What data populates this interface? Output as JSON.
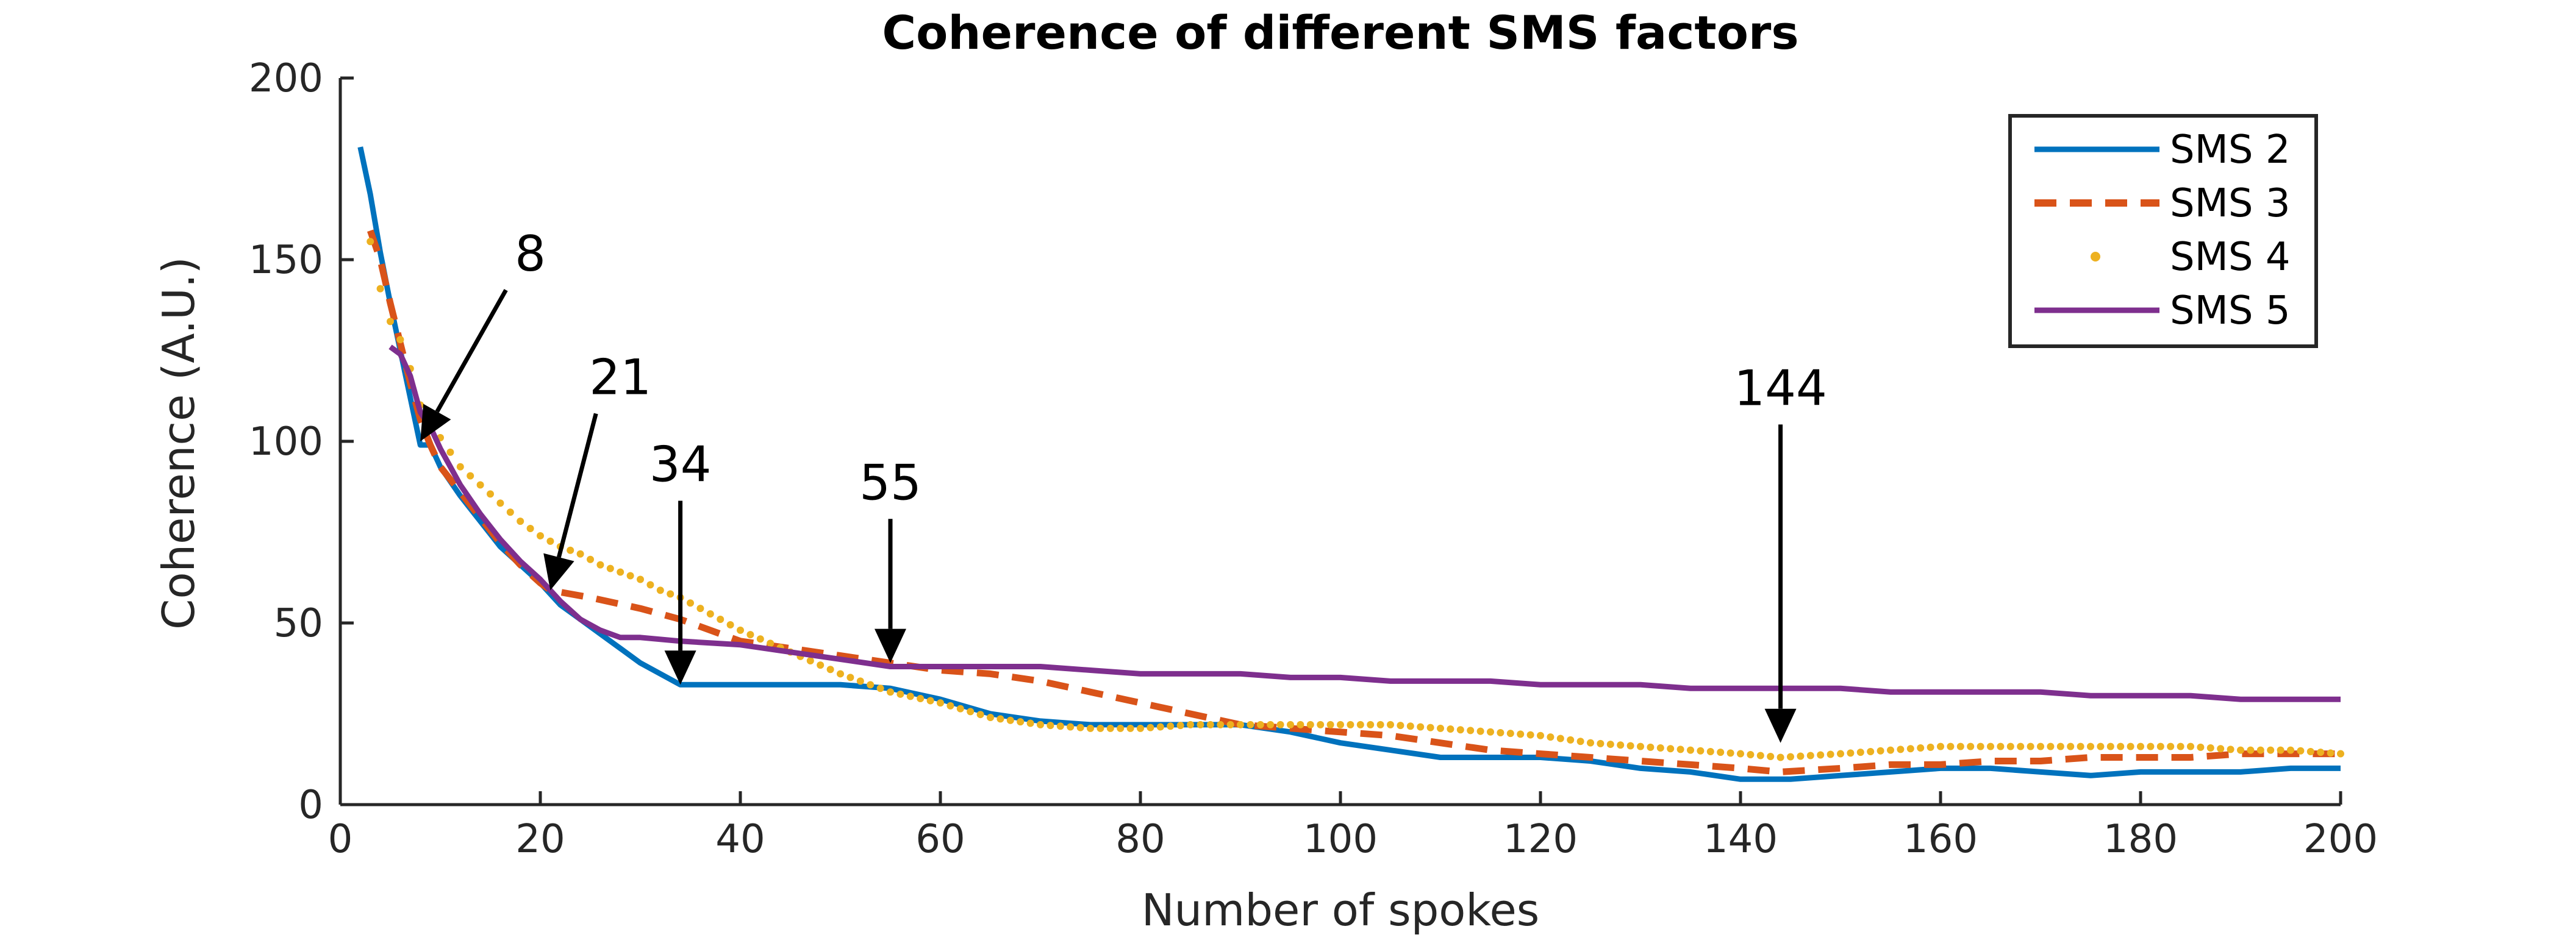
{
  "chart_data": {
    "type": "line",
    "title": "Coherence of different SMS factors",
    "xlabel": "Number of spokes",
    "ylabel": "Coherence (A.U.)",
    "xlim": [
      0,
      200
    ],
    "ylim": [
      0,
      200
    ],
    "xticks": [
      0,
      20,
      40,
      60,
      80,
      100,
      120,
      140,
      160,
      180,
      200
    ],
    "yticks": [
      0,
      50,
      100,
      150,
      200
    ],
    "grid": false,
    "legend_position": "top-right",
    "series": [
      {
        "name": "SMS 2",
        "color": "#0072BD",
        "style": "solid",
        "points": [
          [
            2,
            181
          ],
          [
            3,
            168
          ],
          [
            4,
            152
          ],
          [
            5,
            138
          ],
          [
            6,
            125
          ],
          [
            7,
            112
          ],
          [
            8,
            99
          ],
          [
            9,
            99
          ],
          [
            10,
            93
          ],
          [
            12,
            85
          ],
          [
            14,
            78
          ],
          [
            16,
            71
          ],
          [
            18,
            66
          ],
          [
            20,
            61
          ],
          [
            22,
            55
          ],
          [
            24,
            51
          ],
          [
            26,
            47
          ],
          [
            28,
            43
          ],
          [
            30,
            39
          ],
          [
            32,
            36
          ],
          [
            34,
            33
          ],
          [
            36,
            33
          ],
          [
            40,
            33
          ],
          [
            45,
            33
          ],
          [
            50,
            33
          ],
          [
            55,
            32
          ],
          [
            60,
            29
          ],
          [
            65,
            25
          ],
          [
            70,
            23
          ],
          [
            75,
            22
          ],
          [
            80,
            22
          ],
          [
            85,
            22
          ],
          [
            90,
            22
          ],
          [
            95,
            20
          ],
          [
            100,
            17
          ],
          [
            105,
            15
          ],
          [
            110,
            13
          ],
          [
            115,
            13
          ],
          [
            120,
            13
          ],
          [
            125,
            12
          ],
          [
            130,
            10
          ],
          [
            135,
            9
          ],
          [
            140,
            7
          ],
          [
            145,
            7
          ],
          [
            150,
            8
          ],
          [
            155,
            9
          ],
          [
            160,
            10
          ],
          [
            165,
            10
          ],
          [
            170,
            9
          ],
          [
            175,
            8
          ],
          [
            180,
            9
          ],
          [
            185,
            9
          ],
          [
            190,
            9
          ],
          [
            195,
            10
          ],
          [
            200,
            10
          ]
        ]
      },
      {
        "name": "SMS 3",
        "color": "#D95319",
        "style": "dashed",
        "points": [
          [
            3,
            158
          ],
          [
            4,
            150
          ],
          [
            5,
            138
          ],
          [
            6,
            127
          ],
          [
            7,
            116
          ],
          [
            8,
            106
          ],
          [
            9,
            99
          ],
          [
            10,
            93
          ],
          [
            12,
            86
          ],
          [
            14,
            79
          ],
          [
            16,
            72
          ],
          [
            18,
            66
          ],
          [
            20,
            61
          ],
          [
            21,
            59
          ],
          [
            25,
            57
          ],
          [
            30,
            54
          ],
          [
            34,
            51
          ],
          [
            40,
            45
          ],
          [
            45,
            43
          ],
          [
            50,
            41
          ],
          [
            55,
            39
          ],
          [
            60,
            37
          ],
          [
            65,
            36
          ],
          [
            70,
            34
          ],
          [
            75,
            31
          ],
          [
            80,
            28
          ],
          [
            85,
            25
          ],
          [
            90,
            22
          ],
          [
            95,
            21
          ],
          [
            100,
            20
          ],
          [
            105,
            19
          ],
          [
            110,
            17
          ],
          [
            115,
            15
          ],
          [
            120,
            14
          ],
          [
            125,
            13
          ],
          [
            130,
            12
          ],
          [
            135,
            11
          ],
          [
            140,
            10
          ],
          [
            144,
            9
          ],
          [
            150,
            10
          ],
          [
            155,
            11
          ],
          [
            160,
            11
          ],
          [
            165,
            12
          ],
          [
            170,
            12
          ],
          [
            175,
            13
          ],
          [
            180,
            13
          ],
          [
            185,
            13
          ],
          [
            190,
            14
          ],
          [
            195,
            14
          ],
          [
            200,
            14
          ]
        ]
      },
      {
        "name": "SMS 4",
        "color": "#EDB120",
        "style": "dotted",
        "points": [
          [
            3,
            155
          ],
          [
            4,
            142
          ],
          [
            5,
            133
          ],
          [
            6,
            128
          ],
          [
            7,
            120
          ],
          [
            8,
            110
          ],
          [
            9,
            105
          ],
          [
            10,
            101
          ],
          [
            12,
            93
          ],
          [
            14,
            88
          ],
          [
            16,
            83
          ],
          [
            18,
            78
          ],
          [
            20,
            74
          ],
          [
            22,
            71
          ],
          [
            24,
            69
          ],
          [
            26,
            66
          ],
          [
            28,
            64
          ],
          [
            30,
            62
          ],
          [
            32,
            59
          ],
          [
            34,
            57
          ],
          [
            36,
            54
          ],
          [
            40,
            48
          ],
          [
            45,
            42
          ],
          [
            50,
            36
          ],
          [
            55,
            31
          ],
          [
            60,
            28
          ],
          [
            65,
            24
          ],
          [
            70,
            22
          ],
          [
            75,
            21
          ],
          [
            80,
            21
          ],
          [
            85,
            22
          ],
          [
            90,
            22
          ],
          [
            95,
            22
          ],
          [
            100,
            22
          ],
          [
            105,
            22
          ],
          [
            110,
            21
          ],
          [
            115,
            20
          ],
          [
            120,
            19
          ],
          [
            125,
            17
          ],
          [
            130,
            16
          ],
          [
            135,
            15
          ],
          [
            140,
            14
          ],
          [
            144,
            13
          ],
          [
            150,
            14
          ],
          [
            155,
            15
          ],
          [
            160,
            16
          ],
          [
            165,
            16
          ],
          [
            170,
            16
          ],
          [
            175,
            16
          ],
          [
            180,
            16
          ],
          [
            185,
            16
          ],
          [
            190,
            15
          ],
          [
            195,
            15
          ],
          [
            200,
            14
          ]
        ]
      },
      {
        "name": "SMS 5",
        "color": "#7E2F8E",
        "style": "solid",
        "points": [
          [
            5,
            126
          ],
          [
            6,
            124
          ],
          [
            7,
            118
          ],
          [
            8,
            108
          ],
          [
            9,
            104
          ],
          [
            10,
            98
          ],
          [
            12,
            88
          ],
          [
            14,
            80
          ],
          [
            16,
            73
          ],
          [
            18,
            67
          ],
          [
            20,
            62
          ],
          [
            22,
            56
          ],
          [
            24,
            51
          ],
          [
            26,
            48
          ],
          [
            28,
            46
          ],
          [
            30,
            46
          ],
          [
            34,
            45
          ],
          [
            40,
            44
          ],
          [
            45,
            42
          ],
          [
            50,
            40
          ],
          [
            55,
            38
          ],
          [
            60,
            38
          ],
          [
            65,
            38
          ],
          [
            70,
            38
          ],
          [
            75,
            37
          ],
          [
            80,
            36
          ],
          [
            85,
            36
          ],
          [
            90,
            36
          ],
          [
            95,
            35
          ],
          [
            100,
            35
          ],
          [
            105,
            34
          ],
          [
            110,
            34
          ],
          [
            115,
            34
          ],
          [
            120,
            33
          ],
          [
            125,
            33
          ],
          [
            130,
            33
          ],
          [
            135,
            32
          ],
          [
            140,
            32
          ],
          [
            145,
            32
          ],
          [
            150,
            32
          ],
          [
            155,
            31
          ],
          [
            160,
            31
          ],
          [
            165,
            31
          ],
          [
            170,
            31
          ],
          [
            175,
            30
          ],
          [
            180,
            30
          ],
          [
            185,
            30
          ],
          [
            190,
            29
          ],
          [
            195,
            29
          ],
          [
            200,
            29
          ]
        ]
      }
    ],
    "annotations": [
      {
        "label": "8",
        "target": [
          8,
          100
        ],
        "text_at": [
          19,
          145
        ]
      },
      {
        "label": "21",
        "target": [
          21,
          59
        ],
        "text_at": [
          28,
          111
        ]
      },
      {
        "label": "34",
        "target": [
          34,
          33
        ],
        "text_at": [
          34,
          87
        ]
      },
      {
        "label": "55",
        "target": [
          55,
          39
        ],
        "text_at": [
          55,
          82
        ]
      },
      {
        "label": "144",
        "target": [
          144,
          17
        ],
        "text_at": [
          144,
          108
        ]
      }
    ]
  }
}
